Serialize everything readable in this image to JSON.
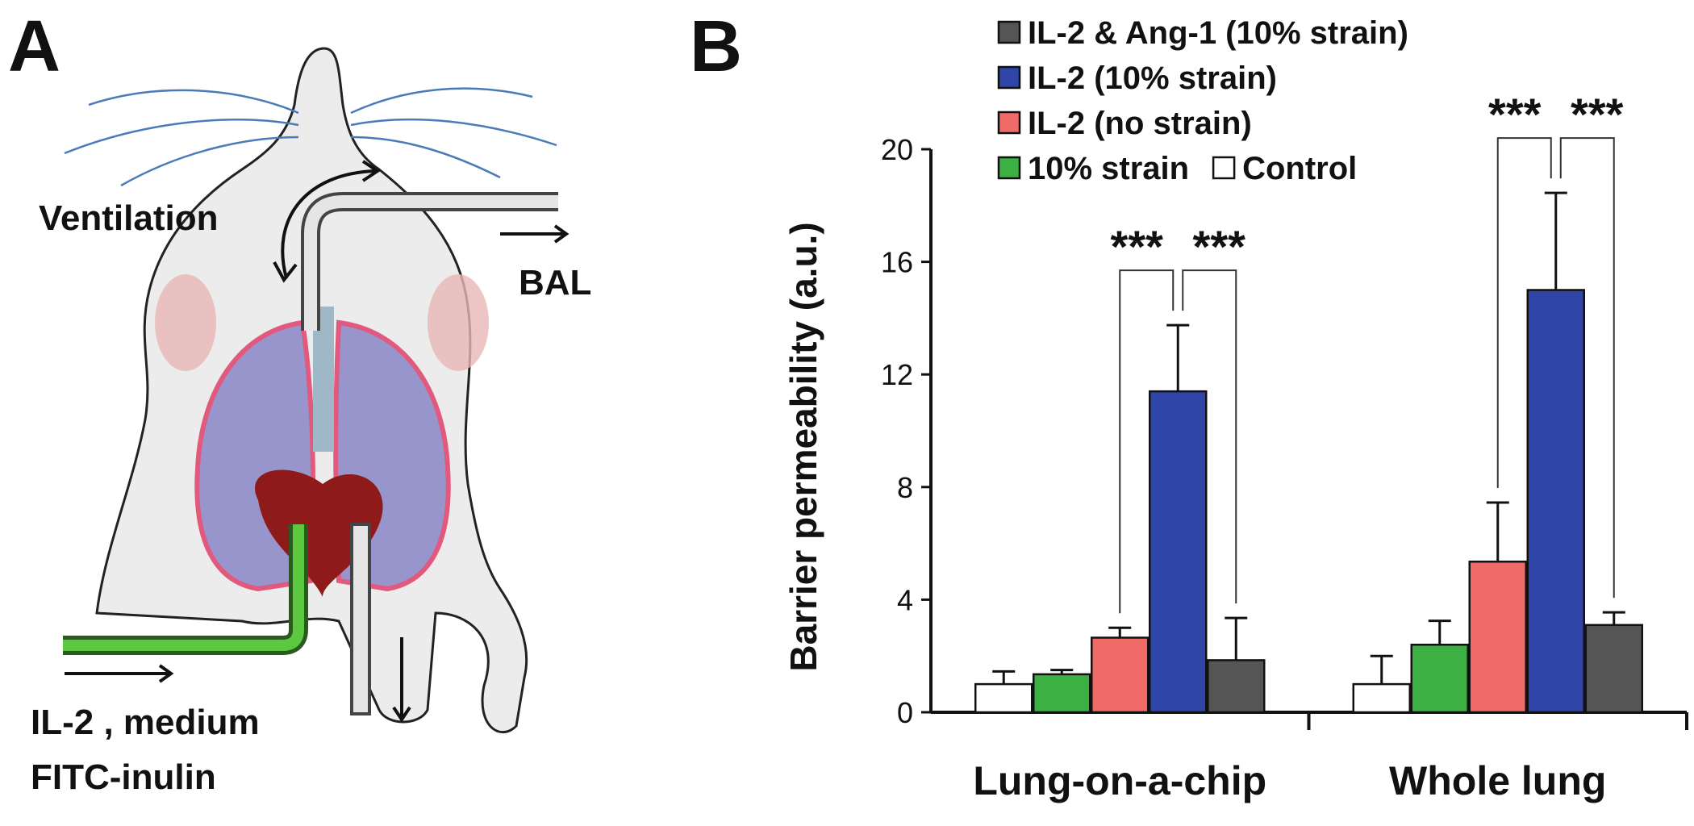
{
  "panel_labels": [
    "A",
    "B"
  ],
  "diagram": {
    "labels": [
      "Ventilation",
      "BAL",
      "IL-2 , medium",
      "FITC-inulin"
    ]
  },
  "chart_data": {
    "type": "bar",
    "y_label": "Barrier permeability (a.u.)",
    "categories": [
      "Lung-on-a-chip",
      "Whole lung"
    ],
    "series": [
      {
        "name": "Control",
        "color": "#ffffff",
        "values": [
          1.0,
          1.0
        ],
        "errors": [
          0.45,
          1.0
        ]
      },
      {
        "name": "10% strain",
        "color": "#3cb043",
        "values": [
          1.35,
          2.4
        ],
        "errors": [
          0.15,
          0.85
        ]
      },
      {
        "name": "IL-2 (no strain)",
        "color": "#f06a6a",
        "values": [
          2.65,
          5.35
        ],
        "errors": [
          0.35,
          2.1
        ]
      },
      {
        "name": "IL-2 (10% strain)",
        "color": "#2f45a8",
        "values": [
          11.4,
          15.0
        ],
        "errors": [
          2.35,
          3.45
        ]
      },
      {
        "name": "IL-2 & Ang-1 (10% strain)",
        "color": "#555555",
        "values": [
          1.85,
          3.1
        ],
        "errors": [
          1.5,
          0.45
        ]
      }
    ],
    "ylim": [
      0,
      20
    ],
    "yticks": [
      0,
      4,
      8,
      12,
      16,
      20
    ],
    "annotations": [
      "***",
      "***",
      "***",
      "***"
    ]
  }
}
